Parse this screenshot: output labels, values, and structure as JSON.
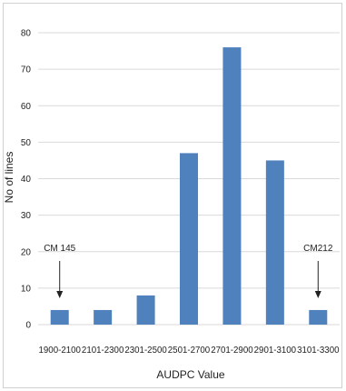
{
  "chart_data": {
    "type": "bar",
    "categories": [
      "1900-2100",
      "2101-2300",
      "2301-2500",
      "2501-2700",
      "2701-2900",
      "2901-3100",
      "3101-3300"
    ],
    "values": [
      4,
      4,
      8,
      47,
      76,
      45,
      4
    ],
    "xlabel": "AUDPC Value",
    "ylabel": "No of lines",
    "ylim": [
      0,
      80
    ],
    "yticks": [
      0,
      10,
      20,
      30,
      40,
      50,
      60,
      70,
      80
    ],
    "grid": true,
    "bar_color": "#4f81bd",
    "gridline_color": "#d9d9d9",
    "annotations": [
      {
        "text": "CM 145",
        "category": "1900-2100"
      },
      {
        "text": "CM212",
        "category": "3101-3300"
      }
    ]
  }
}
